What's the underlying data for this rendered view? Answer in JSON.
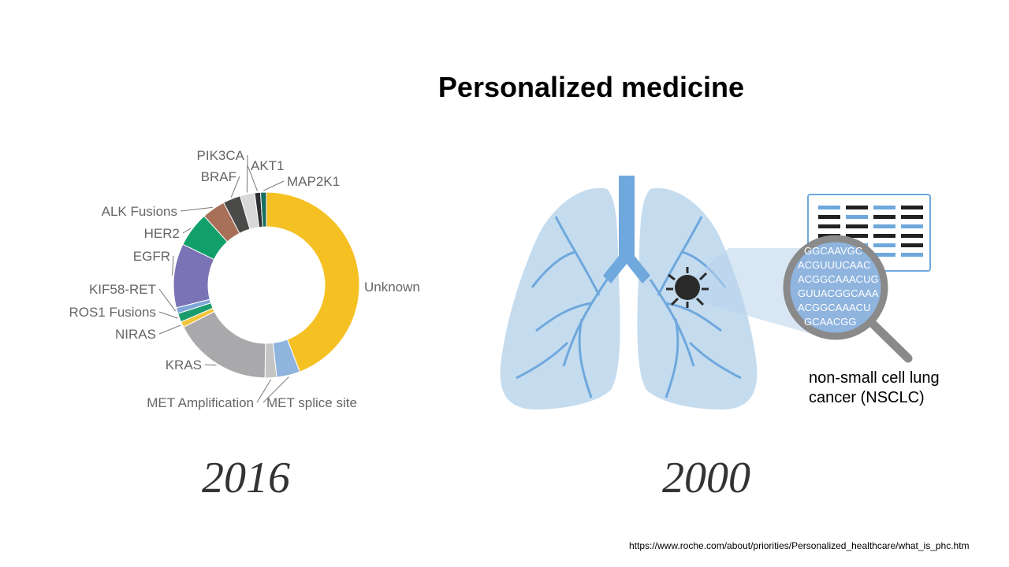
{
  "slide": {
    "title": "Personalized medicine",
    "year_left": "2016",
    "year_right": "2000",
    "caption_line1": "non-small  cell lung",
    "caption_line2": "cancer (NSCLC)",
    "source": "https://www.roche.com/about/priorities/Personalized_healthcare/what_is_phc.htm",
    "dna_lines": [
      "GGCAAVGC",
      "ACGUUUCAAC",
      "ACGGCAAACUG",
      "GUUACGGCAAA",
      "ACGGCAAACU",
      "GCAACGG"
    ]
  },
  "chart_data": {
    "type": "pie",
    "title": "",
    "donut": true,
    "labels": [
      "Unknown",
      "MET splice site",
      "MET Amplification",
      "KRAS",
      "NIRAS",
      "ROS1 Fusions",
      "KIF58-RET",
      "EGFR",
      "HER2",
      "ALK Fusions",
      "BRAF",
      "PIK3CA",
      "AKT1",
      "MAP2K1"
    ],
    "values": [
      43.5,
      4,
      2,
      17,
      1,
      1.5,
      1,
      11,
      6,
      4,
      3,
      2.5,
      1,
      1
    ],
    "colors": [
      "#f5c022",
      "#8fb4de",
      "#c5c5c5",
      "#a9a9ab",
      "#f0c53a",
      "#1a9c6e",
      "#7fa6d8",
      "#7a74b6",
      "#12a06a",
      "#a87058",
      "#4a4a48",
      "#d8d8d8",
      "#303033",
      "#1a6e60"
    ]
  }
}
